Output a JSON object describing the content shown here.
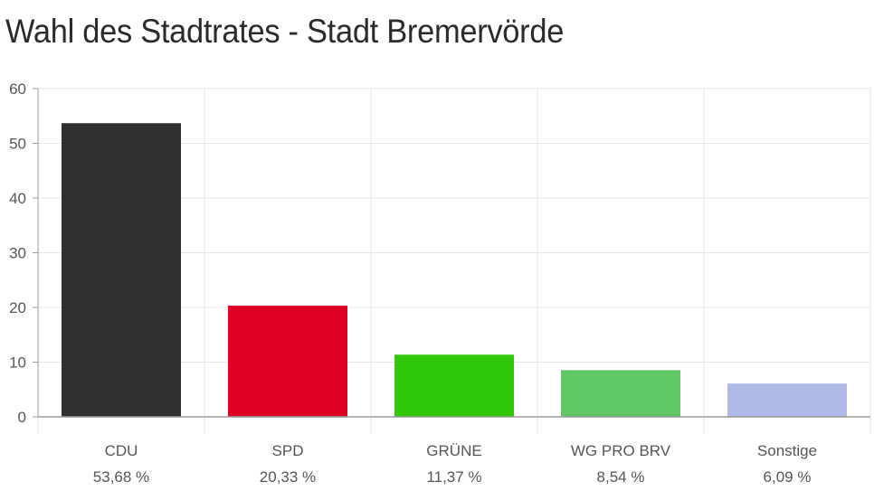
{
  "chart_data": {
    "type": "bar",
    "title": "Wahl des Stadtrates - Stadt Bremervörde",
    "xlabel": "",
    "ylabel": "",
    "ylim": [
      0,
      60
    ],
    "yticks": [
      "0",
      "10",
      "20",
      "30",
      "40",
      "50",
      "60"
    ],
    "grid": true,
    "legend": "none",
    "categories": [
      "CDU",
      "SPD",
      "GRÜNE",
      "WG PRO BRV",
      "Sonstige"
    ],
    "value_labels": [
      "53,68 %",
      "20,33 %",
      "11,37 %",
      "8,54 %",
      "6,09 %"
    ],
    "values": [
      53.68,
      20.33,
      11.37,
      8.54,
      6.09
    ],
    "colors": [
      "#2f2f2d",
      "#dc0025",
      "#31c80a",
      "#5fc766",
      "#adbbe6"
    ]
  }
}
